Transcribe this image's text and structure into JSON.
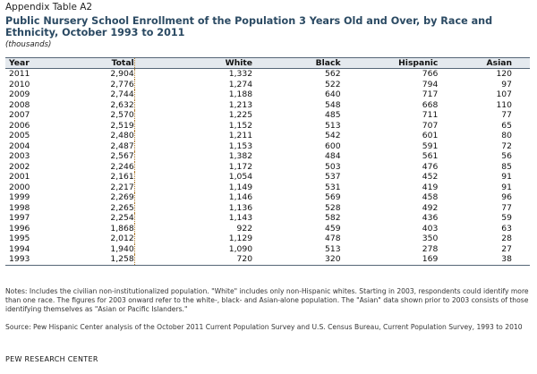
{
  "appendix_label": "Appendix Table A2",
  "title": "Public Nursery School Enrollment of the Population 3 Years Old and Over, by Race and Ethnicity, October 1993 to 2011",
  "units": "(thousands)",
  "table": {
    "headers": [
      "Year",
      "Total",
      "White",
      "Black",
      "Hispanic",
      "Asian"
    ],
    "rows": [
      [
        "2011",
        "2,904",
        "1,332",
        "562",
        "766",
        "120"
      ],
      [
        "2010",
        "2,776",
        "1,274",
        "522",
        "794",
        "97"
      ],
      [
        "2009",
        "2,744",
        "1,188",
        "640",
        "717",
        "107"
      ],
      [
        "2008",
        "2,632",
        "1,213",
        "548",
        "668",
        "110"
      ],
      [
        "2007",
        "2,570",
        "1,225",
        "485",
        "711",
        "77"
      ],
      [
        "2006",
        "2,519",
        "1,152",
        "513",
        "707",
        "65"
      ],
      [
        "2005",
        "2,480",
        "1,211",
        "542",
        "601",
        "80"
      ],
      [
        "2004",
        "2,487",
        "1,153",
        "600",
        "591",
        "72"
      ],
      [
        "2003",
        "2,567",
        "1,382",
        "484",
        "561",
        "56"
      ],
      [
        "2002",
        "2,246",
        "1,172",
        "503",
        "476",
        "85"
      ],
      [
        "2001",
        "2,161",
        "1,054",
        "537",
        "452",
        "91"
      ],
      [
        "2000",
        "2,217",
        "1,149",
        "531",
        "419",
        "91"
      ],
      [
        "1999",
        "2,269",
        "1,146",
        "569",
        "458",
        "96"
      ],
      [
        "1998",
        "2,265",
        "1,136",
        "528",
        "492",
        "77"
      ],
      [
        "1997",
        "2,254",
        "1,143",
        "582",
        "436",
        "59"
      ],
      [
        "1996",
        "1,868",
        "922",
        "459",
        "403",
        "63"
      ],
      [
        "1995",
        "2,012",
        "1,129",
        "478",
        "350",
        "28"
      ],
      [
        "1994",
        "1,940",
        "1,090",
        "513",
        "278",
        "27"
      ],
      [
        "1993",
        "1,258",
        "720",
        "320",
        "169",
        "38"
      ]
    ]
  },
  "notes": "Notes: Includes the civilian non-institutionalized population. \"White\" includes only non-Hispanic whites. Starting in 2003, respondents could identify more than one race. The figures for 2003 onward refer to the white-, black- and Asian-alone population. The \"Asian\" data shown prior to 2003 consists of those identifying themselves as \"Asian or Pacific Islanders.\"",
  "source": "Source: Pew Hispanic Center analysis of the October 2011 Current Population Survey  and U.S. Census Bureau, Current Population Survey, 1993 to 2010",
  "footer": "PEW RESEARCH CENTER"
}
